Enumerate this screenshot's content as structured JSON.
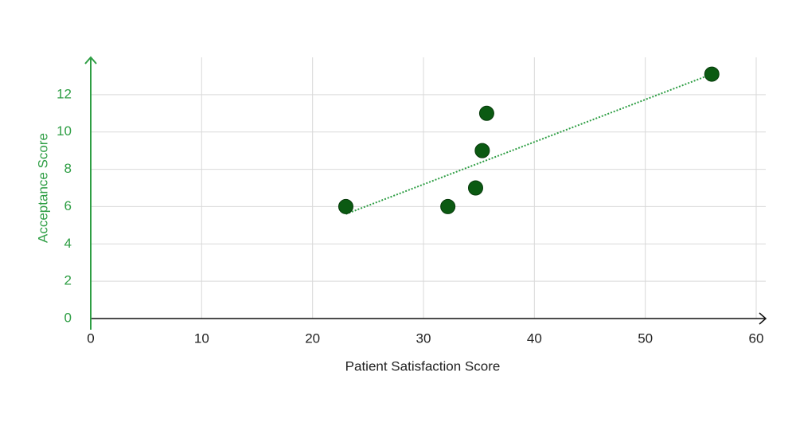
{
  "chart_data": {
    "type": "scatter",
    "x_label": "Patient Satisfaction Score",
    "y_label": "Acceptance Score",
    "series": [
      {
        "color": "#0b5a12",
        "x": [
          23,
          32.2,
          34.7,
          35.3,
          35.7,
          56
        ],
        "values": [
          6,
          6,
          7,
          9,
          11,
          13.1
        ]
      }
    ],
    "trend_line": {
      "color": "#2e9e44",
      "x": [
        23,
        56
      ],
      "values": [
        5.6,
        13.1
      ]
    },
    "xlim": [
      0,
      60
    ],
    "xticks": [
      0,
      10,
      20,
      30,
      40,
      50,
      60
    ],
    "ylim": [
      0,
      14
    ],
    "yticks": [
      0,
      2,
      4,
      6,
      8,
      10,
      12
    ],
    "grid": true
  }
}
